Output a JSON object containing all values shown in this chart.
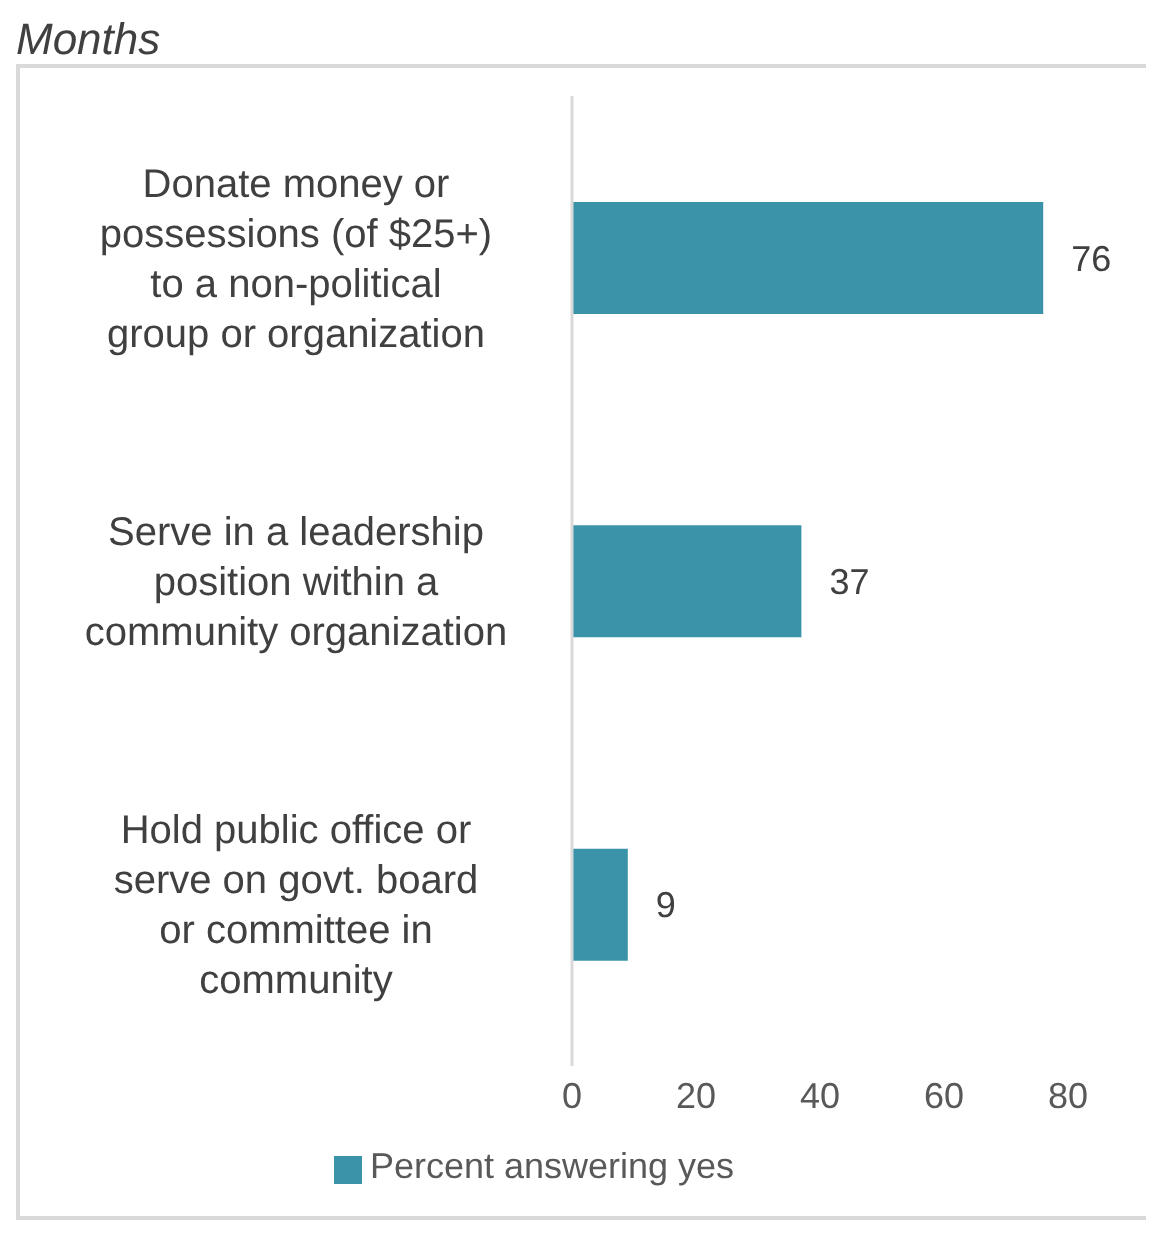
{
  "chart_data": {
    "type": "bar",
    "orientation": "horizontal",
    "title": "Months",
    "categories": [
      "Donate money or possessions (of $25+) to a non-political group or organization",
      "Serve in a leadership position within a community organization",
      "Hold public office or serve on govt. board or committee in community"
    ],
    "series": [
      {
        "name": "Percent answering yes",
        "color": "#3a93a8",
        "values": [
          76,
          37,
          9
        ]
      }
    ],
    "xlim": [
      0,
      80
    ],
    "xticks": [
      0,
      20,
      40,
      60,
      80
    ],
    "data_labels": true,
    "grid": false,
    "legend": "bottom"
  }
}
